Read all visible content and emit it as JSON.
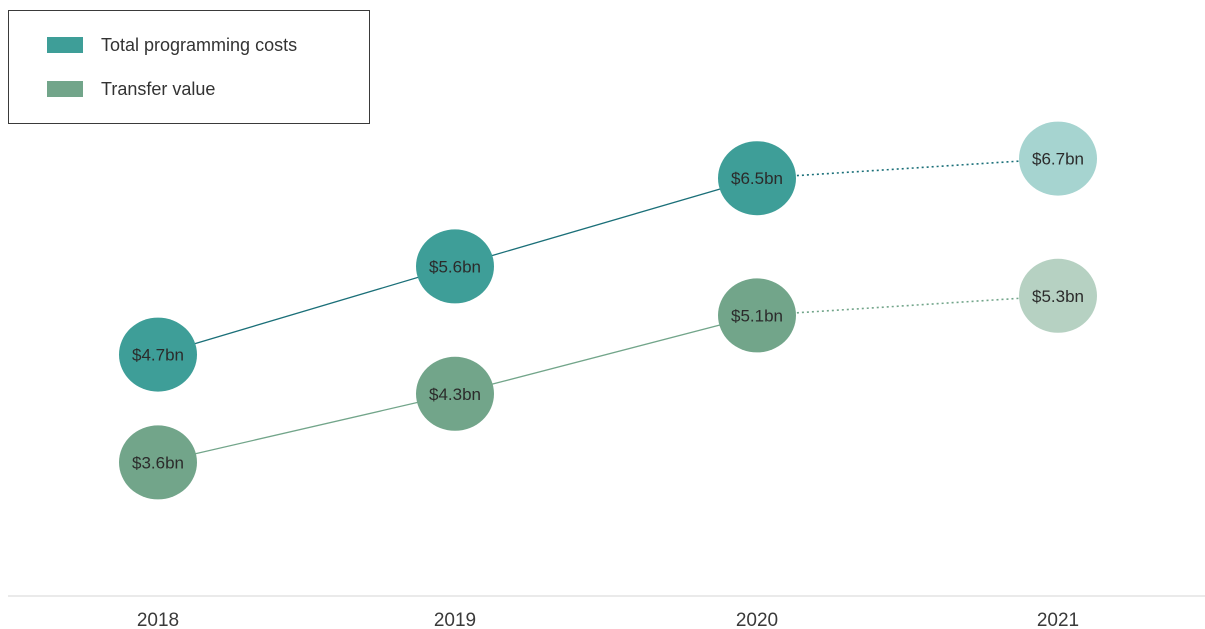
{
  "chart_data": {
    "type": "scatter",
    "title": "",
    "xlabel": "",
    "ylabel": "",
    "categories": [
      "2018",
      "2019",
      "2020",
      "2021"
    ],
    "ylim": [
      2.4,
      7.4
    ],
    "grid": false,
    "legend_position": "top-left",
    "series": [
      {
        "name": "Total programming costs",
        "color": "#3e9e98",
        "projected_color": "#a6d4d0",
        "line_color": "#1a6f78",
        "values": [
          4.7,
          5.6,
          6.5,
          6.7
        ],
        "labels": [
          "$4.7bn",
          "$5.6bn",
          "$6.5bn",
          "$6.7bn"
        ],
        "projected_from_index": 3
      },
      {
        "name": "Transfer value",
        "color": "#72a58a",
        "projected_color": "#b6d1c2",
        "line_color": "#72a58a",
        "values": [
          3.6,
          4.3,
          5.1,
          5.3
        ],
        "labels": [
          "$3.6bn",
          "$4.3bn",
          "$5.1bn",
          "$5.3bn"
        ],
        "projected_from_index": 3
      }
    ]
  }
}
